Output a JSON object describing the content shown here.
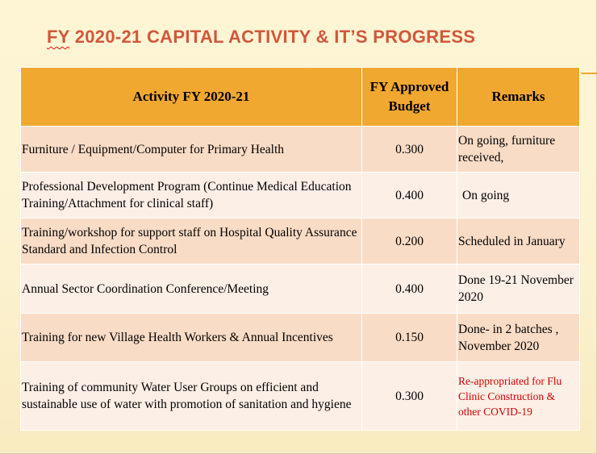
{
  "slide": {
    "title_fy": "FY",
    "title_rest": " 2020-21 CAPITAL ACTIVITY & IT’S PROGRESS"
  },
  "table": {
    "headers": [
      "Activity FY 2020-21",
      "FY Approved Budget",
      "Remarks"
    ],
    "header_budget_line1": "FY Approved",
    "header_budget_line2": "Budget",
    "rows": [
      {
        "activity": "Furniture / Equipment/Computer for Primary Health",
        "budget": "0.300",
        "remarks": "On going, furniture received,"
      },
      {
        "activity": "Professional Development Program (Continue Medical Education Training/Attachment for clinical staff)",
        "budget": "0.400",
        "remarks": "On going"
      },
      {
        "activity": "Training/workshop for support staff on Hospital Quality Assurance Standard and Infection Control",
        "budget": "0.200",
        "remarks": "Scheduled in January"
      },
      {
        "activity": "Annual Sector Coordination Conference/Meeting",
        "budget": "0.400",
        "remarks": "Done 19-21 November 2020"
      },
      {
        "activity": "Training for new Village Health Workers & Annual Incentives",
        "budget": "0.150",
        "remarks": "Done- in 2 batches , November 2020"
      },
      {
        "activity": "Training of community Water User Groups on efficient and sustainable use of water with promotion of sanitation and hygiene",
        "budget": "0.300",
        "remarks": "Re-appropriated  for Flu Clinic Construction & other COVID-19"
      }
    ]
  },
  "colors": {
    "title": "#d1573a",
    "header_bg": "#f0a830",
    "row_odd": "#f9dcc6",
    "row_even": "#fcefe6",
    "remark_alert": "#d10000"
  }
}
